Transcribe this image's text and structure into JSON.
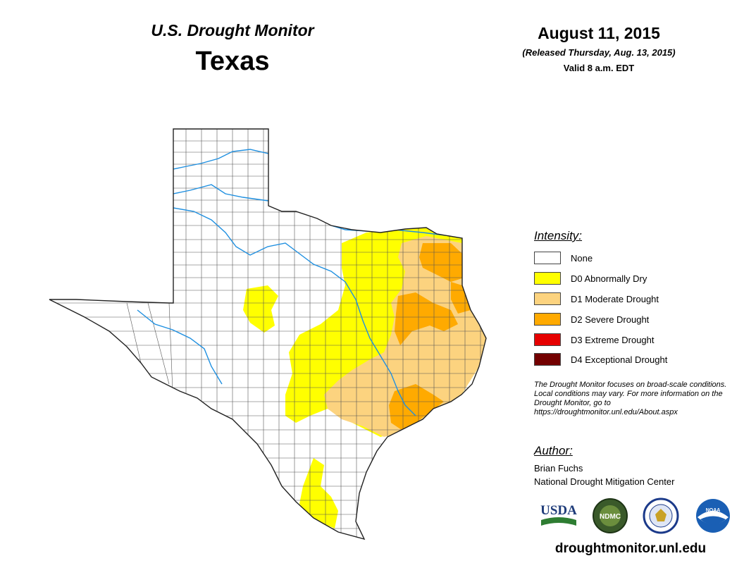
{
  "header": {
    "product": "U.S. Drought Monitor",
    "state": "Texas",
    "date": "August 11, 2015",
    "released": "(Released Thursday, Aug. 13, 2015)",
    "valid": "Valid 8 a.m. EDT"
  },
  "legend": {
    "title": "Intensity:",
    "items": [
      {
        "label": "None",
        "color": "#ffffff"
      },
      {
        "label": "D0 Abnormally Dry",
        "color": "#ffff00"
      },
      {
        "label": "D1 Moderate Drought",
        "color": "#fcd37f"
      },
      {
        "label": "D2 Severe Drought",
        "color": "#ffaa00"
      },
      {
        "label": "D3 Extreme Drought",
        "color": "#e60000"
      },
      {
        "label": "D4 Exceptional Drought",
        "color": "#730000"
      }
    ]
  },
  "note": "The Drought Monitor focuses on broad-scale conditions. Local conditions may vary. For more information on the Drought Monitor, go to https://droughtmonitor.unl.edu/About.aspx",
  "author": {
    "title": "Author:",
    "name": "Brian Fuchs",
    "org": "National Drought Mitigation Center"
  },
  "logos": {
    "usda": "USDA",
    "ndmc": "NDMC",
    "noaa": "NOAA"
  },
  "footer": {
    "url": "droughtmonitor.unl.edu"
  },
  "map": {
    "river_color": "#1e8fe0",
    "county_line_color": "#555555"
  }
}
